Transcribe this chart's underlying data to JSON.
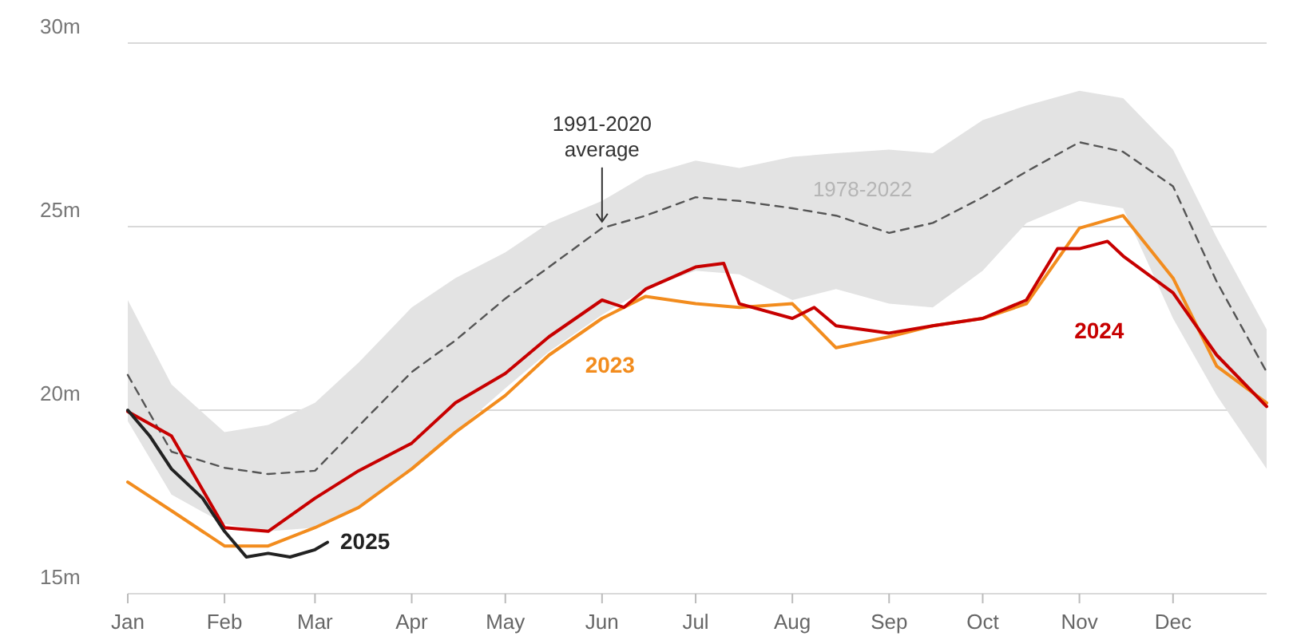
{
  "chart_data": {
    "type": "line",
    "ylim": [
      15,
      30
    ],
    "yticks": [
      {
        "value": 15,
        "label": "15m"
      },
      {
        "value": 20,
        "label": "20m"
      },
      {
        "value": 25,
        "label": "25m"
      },
      {
        "value": 30,
        "label": "30m"
      }
    ],
    "xlim": [
      "--01-01",
      "--12-31"
    ],
    "xticks": [
      {
        "value": "--01-01",
        "label": "Jan"
      },
      {
        "value": "--02-01",
        "label": "Feb"
      },
      {
        "value": "--03-01",
        "label": "Mar"
      },
      {
        "value": "--04-01",
        "label": "Apr"
      },
      {
        "value": "--05-01",
        "label": "May"
      },
      {
        "value": "--06-01",
        "label": "Jun"
      },
      {
        "value": "--07-01",
        "label": "Jul"
      },
      {
        "value": "--08-01",
        "label": "Aug"
      },
      {
        "value": "--09-01",
        "label": "Sep"
      },
      {
        "value": "--10-01",
        "label": "Oct"
      },
      {
        "value": "--11-01",
        "label": "Nov"
      },
      {
        "value": "--12-01",
        "label": "Dec"
      }
    ],
    "grid": "y",
    "marker": "none",
    "x": [
      "--01-01",
      "--01-15",
      "--02-01",
      "--02-15",
      "--03-01",
      "--03-15",
      "--04-01",
      "--04-15",
      "--05-01",
      "--05-15",
      "--06-01",
      "--06-15",
      "--07-01",
      "--07-15",
      "--08-01",
      "--08-15",
      "--09-01",
      "--09-15",
      "--10-01",
      "--10-15",
      "--11-01",
      "--11-15",
      "--12-01",
      "--12-15",
      "--12-31"
    ],
    "series": [
      {
        "name": "1991-2020 average",
        "color": "#555555",
        "line_style": "dashed",
        "values": [
          20.96,
          18.87,
          18.43,
          18.26,
          18.35,
          19.57,
          21.04,
          21.9,
          23.04,
          23.9,
          24.96,
          25.3,
          25.8,
          25.7,
          25.5,
          25.3,
          24.83,
          25.1,
          25.8,
          26.5,
          27.3,
          27.04,
          26.1,
          23.5,
          21.04
        ],
        "lower": [
          19.7,
          17.7,
          16.9,
          16.7,
          16.8,
          17.4,
          18.4,
          19.4,
          20.6,
          21.6,
          22.6,
          23.3,
          23.8,
          23.7,
          23.0,
          23.3,
          22.9,
          22.8,
          23.8,
          25.1,
          25.7,
          25.5,
          22.5,
          20.4,
          18.4
        ],
        "upper": [
          23.0,
          20.7,
          19.4,
          19.6,
          20.2,
          21.3,
          22.8,
          23.6,
          24.3,
          25.1,
          25.7,
          26.4,
          26.8,
          26.6,
          26.9,
          27.0,
          27.1,
          27.0,
          27.9,
          28.3,
          28.7,
          28.5,
          27.1,
          24.7,
          22.2
        ]
      },
      {
        "name": "2023",
        "color": "#f28c1e",
        "values": [
          18.04,
          17.26,
          16.3,
          16.3,
          16.8,
          17.35,
          18.4,
          19.4,
          20.4,
          21.5,
          22.5,
          23.1,
          22.9,
          22.8,
          22.9,
          21.7,
          22.0,
          22.3,
          22.5,
          22.9,
          24.96,
          25.3,
          23.6,
          21.2,
          20.2
        ]
      },
      {
        "name": "2024",
        "color": "#c70000",
        "x": [
          "--01-01",
          "--01-15",
          "--02-01",
          "--02-15",
          "--03-01",
          "--03-15",
          "--04-01",
          "--04-15",
          "--05-01",
          "--05-15",
          "--06-01",
          "--06-08",
          "--06-15",
          "--07-01",
          "--07-10",
          "--07-15",
          "--08-01",
          "--08-08",
          "--08-15",
          "--09-01",
          "--09-15",
          "--10-01",
          "--10-15",
          "--10-25",
          "--11-01",
          "--11-10",
          "--11-15",
          "--12-01",
          "--12-15",
          "--12-31"
        ],
        "values": [
          19.96,
          19.3,
          16.8,
          16.7,
          17.6,
          18.35,
          19.1,
          20.2,
          21.0,
          22.0,
          23.0,
          22.8,
          23.3,
          23.9,
          24.0,
          22.9,
          22.5,
          22.8,
          22.3,
          22.1,
          22.3,
          22.5,
          23.0,
          24.4,
          24.4,
          24.6,
          24.2,
          23.2,
          21.5,
          20.1
        ]
      },
      {
        "name": "2025",
        "color": "#222222",
        "x": [
          "--01-01",
          "--01-08",
          "--01-15",
          "--01-25",
          "--02-01",
          "--02-08",
          "--02-15",
          "--02-22",
          "--03-01",
          "--03-05"
        ],
        "values": [
          20.0,
          19.3,
          18.4,
          17.6,
          16.7,
          16.0,
          16.1,
          16.0,
          16.2,
          16.4
        ]
      }
    ],
    "annotations": [
      "1978-2022"
    ]
  }
}
